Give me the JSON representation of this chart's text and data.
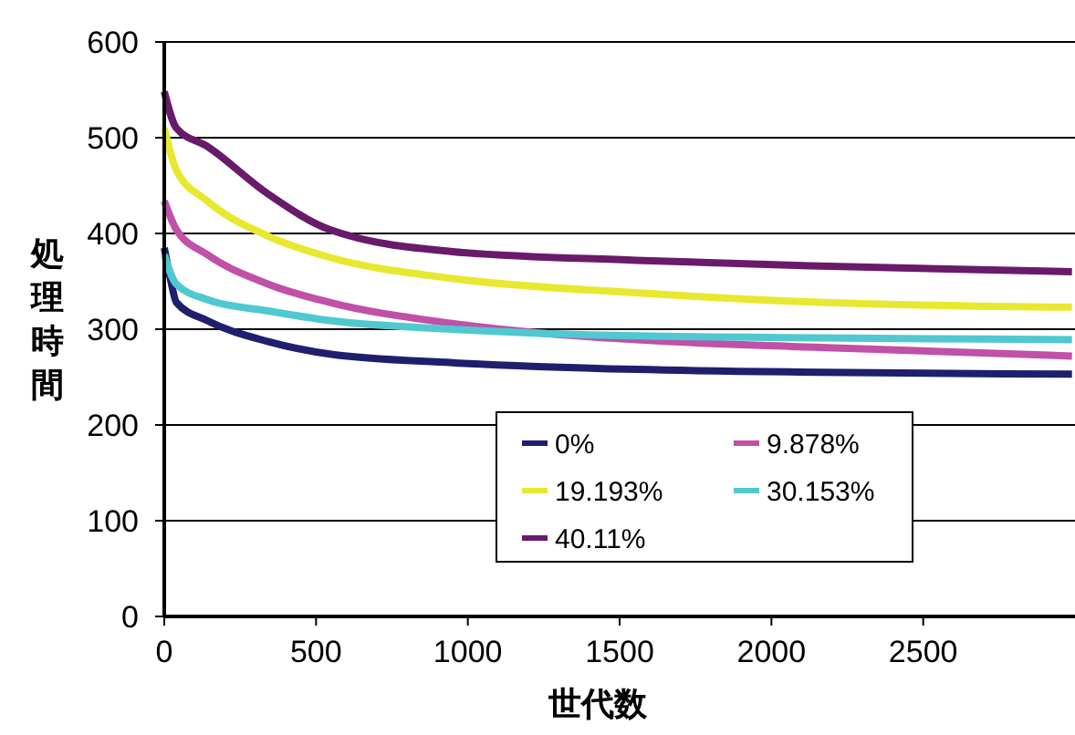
{
  "chart_data": {
    "type": "line",
    "xlabel": "世代数",
    "ylabel": "処理時間",
    "xlim": [
      0,
      3000
    ],
    "ylim": [
      0,
      600
    ],
    "xticks": [
      0,
      500,
      1000,
      1500,
      2000,
      2500
    ],
    "yticks": [
      0,
      100,
      200,
      300,
      400,
      500,
      600
    ],
    "grid": "y",
    "legend": "bottom",
    "line_style": "solid",
    "marker": "none",
    "series": [
      {
        "name": "0%",
        "color": "#1f1f6e",
        "x": [
          0,
          20,
          40,
          141,
          343,
          545,
          949,
          1555,
          2161,
          2990
        ],
        "values": [
          385,
          353,
          328,
          309,
          287,
          274,
          265,
          258,
          255,
          253
        ]
      },
      {
        "name": "9.878%",
        "color": "#c050a8",
        "x": [
          0,
          40,
          141,
          343,
          545,
          949,
          1555,
          2161,
          2990
        ],
        "values": [
          434,
          404,
          378,
          347,
          328,
          306,
          289,
          281,
          272
        ]
      },
      {
        "name": "19.193%",
        "color": "#e8e830",
        "x": [
          0,
          40,
          141,
          343,
          545,
          949,
          1555,
          2161,
          2990
        ],
        "values": [
          510,
          466,
          434,
          397,
          375,
          353,
          338,
          328,
          323
        ]
      },
      {
        "name": "30.153%",
        "color": "#50c8d0",
        "x": [
          0,
          40,
          141,
          343,
          545,
          949,
          1555,
          2161,
          2990
        ],
        "values": [
          378,
          347,
          331,
          319,
          309,
          300,
          293,
          291,
          289
        ]
      },
      {
        "name": "40.11%",
        "color": "#6a1a6a",
        "x": [
          0,
          40,
          141,
          343,
          545,
          949,
          1555,
          2161,
          2990
        ],
        "values": [
          548,
          510,
          491,
          441,
          404,
          381,
          372,
          366,
          360
        ]
      }
    ]
  }
}
